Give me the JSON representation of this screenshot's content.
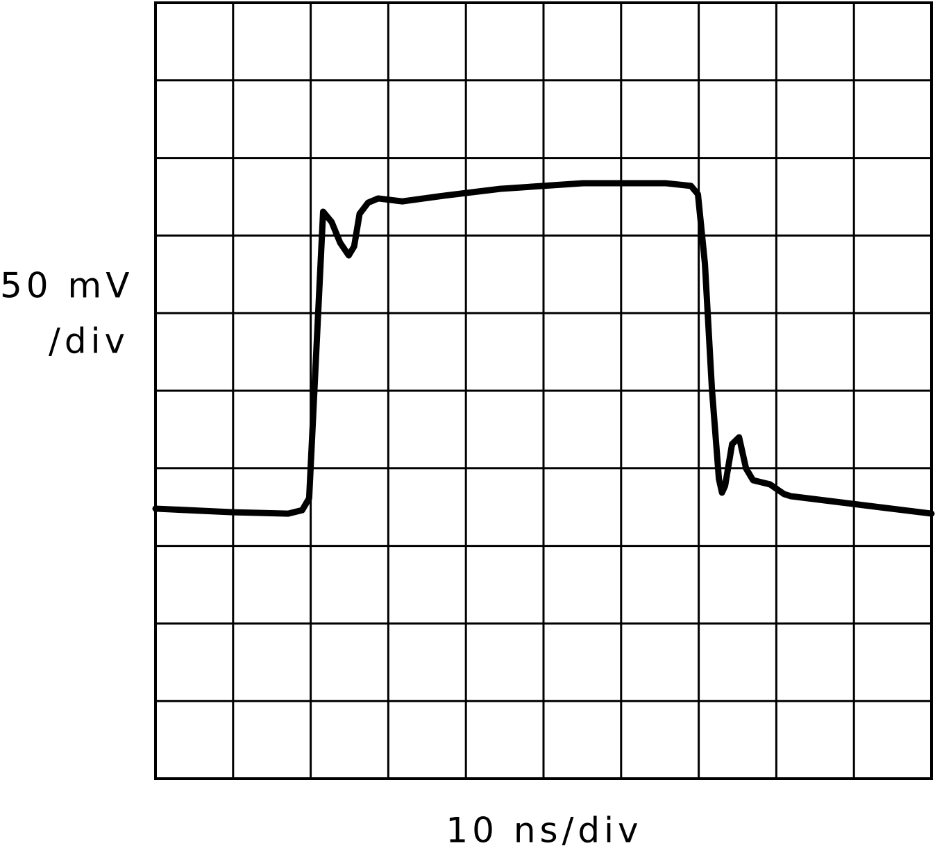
{
  "chart_data": {
    "type": "line",
    "y_label": [
      "50 mV",
      "/div"
    ],
    "x_label": "10 ns/div",
    "xlim": [
      0,
      100
    ],
    "ylim": [
      0,
      500
    ],
    "xticks": [
      0,
      10,
      20,
      30,
      40,
      50,
      60,
      70,
      80,
      90,
      100
    ],
    "yticks": [
      0,
      50,
      100,
      150,
      200,
      250,
      300,
      350,
      400,
      450,
      500
    ],
    "grid": true,
    "series": [
      {
        "color": "#000000",
        "x": [
          0,
          10,
          17.1,
          18.9,
          19.8,
          21.6,
          22.7,
          23.8,
          24.9,
          25.6,
          26.3,
          27.4,
          28.7,
          31.8,
          37.2,
          44.4,
          55.1,
          65.8,
          69,
          69.9,
          70.8,
          71.7,
          72.6,
          73,
          73.4,
          74.3,
          75.2,
          76.1,
          77,
          79.2,
          81,
          81.9,
          100
        ],
        "values": [
          174,
          171.7,
          170.8,
          173,
          180.7,
          365.4,
          358.7,
          345.3,
          337.2,
          343,
          364,
          371.2,
          373.9,
          372,
          375.7,
          380.1,
          383.7,
          383.7,
          382,
          376.6,
          331.8,
          251.3,
          193.2,
          184.3,
          188.7,
          215.6,
          220,
          199.9,
          192.3,
          189.6,
          183.4,
          182,
          170.8
        ]
      }
    ]
  }
}
